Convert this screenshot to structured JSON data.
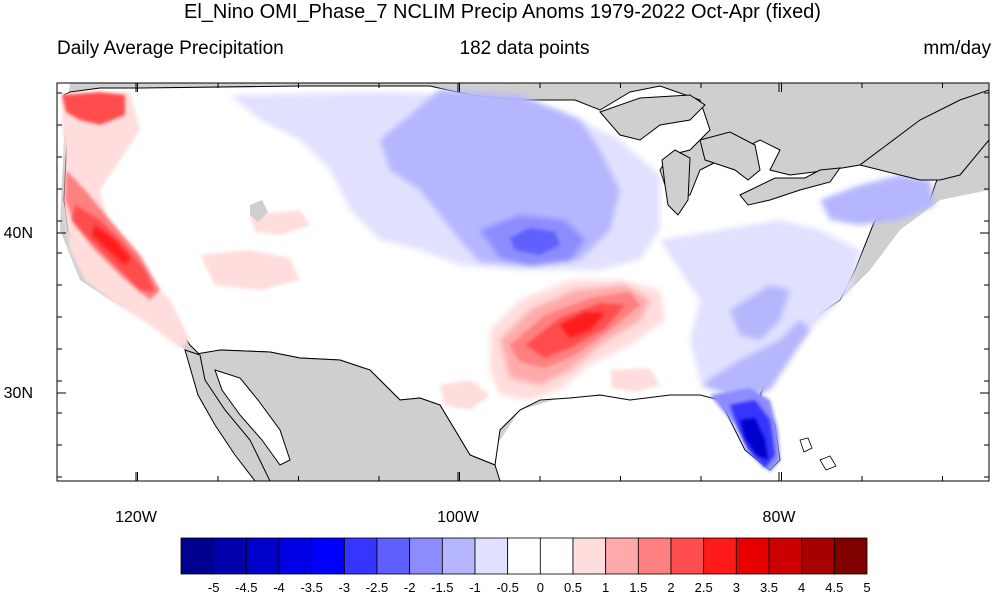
{
  "title": "El_Nino OMI_Phase_7 NCLIM Precip Anoms 1979-2022 Oct-Apr (fixed)",
  "subtitle_left": "Daily Average Precipitation",
  "subtitle_center": "182 data points",
  "subtitle_right": "mm/day",
  "lat_labels": [
    "40N",
    "30N"
  ],
  "lon_labels": [
    "120W",
    "100W",
    "80W"
  ],
  "colorbar": {
    "labels": [
      "-5",
      "-4.5",
      "-4",
      "-3.5",
      "-3",
      "-2.5",
      "-2",
      "-1.5",
      "-1",
      "-0.5",
      "0",
      "0.5",
      "1",
      "1.5",
      "2",
      "2.5",
      "3",
      "3.5",
      "4",
      "4.5",
      "5"
    ],
    "colors": [
      "#00008f",
      "#0000ad",
      "#0000cc",
      "#0000e6",
      "#0000ff",
      "#3535ff",
      "#6060ff",
      "#8c8cff",
      "#b6b6ff",
      "#e0e0ff",
      "#ffffff",
      "#ffffff",
      "#ffdddd",
      "#ffaaaa",
      "#ff8080",
      "#ff4d4d",
      "#ff1a1a",
      "#e60000",
      "#cc0000",
      "#a80000",
      "#800000"
    ]
  },
  "colors": {
    "land_fill": "#ffffff",
    "ocean_outside": "#cfcfcf",
    "wet_anomaly": "#ff4d4d",
    "dry_anomaly": "#6060ff"
  },
  "map": {
    "projection": "lat-lon",
    "lon_range": [
      "125W",
      "65W"
    ],
    "lat_range": [
      "24.5N",
      "49.5N"
    ],
    "regions": [
      {
        "name": "west-coast-wet",
        "anomaly_mm_day": 3.0
      },
      {
        "name": "southern-plains-wet",
        "anomaly_mm_day": 2.5
      },
      {
        "name": "central-plains-dry",
        "anomaly_mm_day": -2.0
      },
      {
        "name": "florida-dry",
        "anomaly_mm_day": -4.0
      },
      {
        "name": "northeast-dry",
        "anomaly_mm_day": -1.0
      }
    ]
  }
}
